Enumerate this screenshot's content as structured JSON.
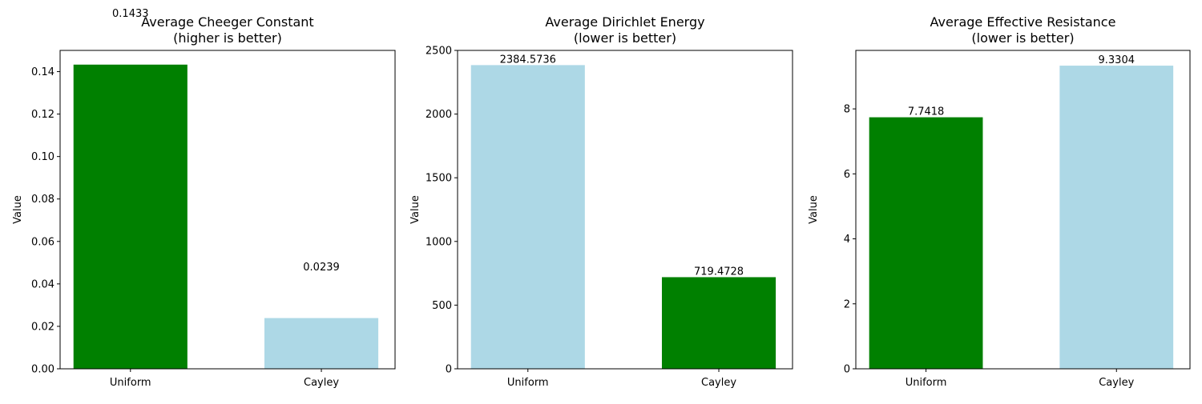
{
  "chart_data": [
    {
      "type": "bar",
      "title": "Average Cheeger Constant",
      "subtitle": "(higher is better)",
      "xlabel": "",
      "ylabel": "Value",
      "categories": [
        "Uniform",
        "Cayley"
      ],
      "values": [
        0.1433,
        0.0239
      ],
      "value_labels": [
        "0.1433",
        "0.0239"
      ],
      "bar_colors": [
        "#008000",
        "#add8e6"
      ],
      "ylim": [
        0,
        0.15
      ],
      "yticks": [
        0.0,
        0.02,
        0.04,
        0.06,
        0.08,
        0.1,
        0.12,
        0.14
      ],
      "ytick_labels": [
        "0.00",
        "0.02",
        "0.04",
        "0.06",
        "0.08",
        "0.10",
        "0.12",
        "0.14"
      ],
      "grid": false,
      "legend": "none"
    },
    {
      "type": "bar",
      "title": "Average Dirichlet Energy",
      "subtitle": "(lower is better)",
      "xlabel": "",
      "ylabel": "Value",
      "categories": [
        "Uniform",
        "Cayley"
      ],
      "values": [
        2384.5736,
        719.4728
      ],
      "value_labels": [
        "2384.5736",
        "719.4728"
      ],
      "bar_colors": [
        "#add8e6",
        "#008000"
      ],
      "ylim": [
        0,
        2500
      ],
      "yticks": [
        0,
        500,
        1000,
        1500,
        2000,
        2500
      ],
      "ytick_labels": [
        "0",
        "500",
        "1000",
        "1500",
        "2000",
        "2500"
      ],
      "grid": false,
      "legend": "none"
    },
    {
      "type": "bar",
      "title": "Average Effective Resistance",
      "subtitle": "(lower is better)",
      "xlabel": "",
      "ylabel": "Value",
      "categories": [
        "Uniform",
        "Cayley"
      ],
      "values": [
        7.7418,
        9.3304
      ],
      "value_labels": [
        "7.7418",
        "9.3304"
      ],
      "bar_colors": [
        "#008000",
        "#add8e6"
      ],
      "ylim": [
        0,
        9.8
      ],
      "yticks": [
        0,
        2,
        4,
        6,
        8
      ],
      "ytick_labels": [
        "0",
        "2",
        "4",
        "6",
        "8"
      ],
      "grid": false,
      "legend": "none"
    }
  ]
}
